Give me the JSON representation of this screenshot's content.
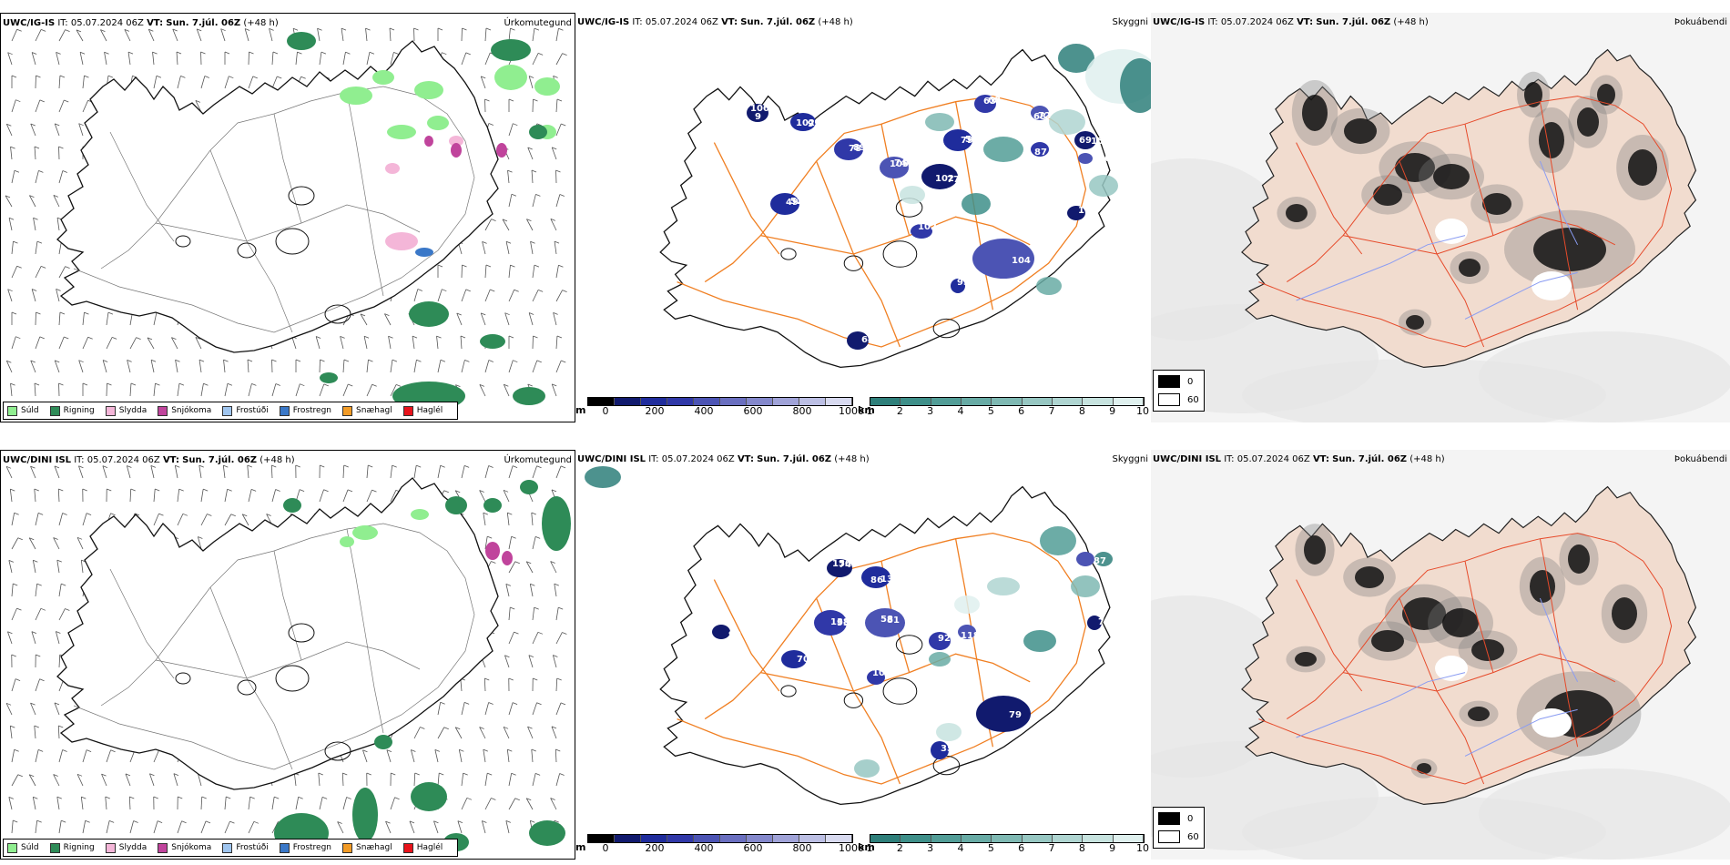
{
  "rows": [
    {
      "model": "UWC/IG-IS",
      "it_label": "IT:",
      "it_value": "05.07.2024 06Z",
      "vt_label": "VT:",
      "vt_value": "Sun. 7.júl. 06Z",
      "lead": "(+48 h)"
    },
    {
      "model": "UWC/DINI ISL",
      "it_label": "IT:",
      "it_value": "05.07.2024 06Z",
      "vt_label": "VT:",
      "vt_value": "Sun. 7.júl. 06Z",
      "lead": "(+48 h)"
    }
  ],
  "panel_names": {
    "precip": "Úrkomutegund",
    "visibility": "Skyggni",
    "fog": "Þokuábendi"
  },
  "precip_legend": [
    {
      "label": "Súld",
      "color": "#90ee90"
    },
    {
      "label": "Rigning",
      "color": "#2e8b57"
    },
    {
      "label": "Slydda",
      "color": "#f4b6d8"
    },
    {
      "label": "Snjókoma",
      "color": "#c0449c"
    },
    {
      "label": "Frostúði",
      "color": "#9fc5ef"
    },
    {
      "label": "Frostregn",
      "color": "#3a78c8"
    },
    {
      "label": "Snæhagl",
      "color": "#f29b26"
    },
    {
      "label": "Haglél",
      "color": "#e8131b"
    }
  ],
  "visibility_m_bar": {
    "unit": "m",
    "ticks": [
      "0",
      "200",
      "400",
      "600",
      "800",
      "1000"
    ],
    "colors": [
      "#000000",
      "#111a6e",
      "#1f2c9c",
      "#3038a8",
      "#4c54b4",
      "#6a6fc0",
      "#8488cc",
      "#a0a3d8",
      "#bcbfe4",
      "#d8daf0"
    ]
  },
  "visibility_km_bar": {
    "unit": "km",
    "ticks": [
      "1",
      "2",
      "3",
      "4",
      "5",
      "6",
      "7",
      "8",
      "9",
      "10"
    ],
    "colors": [
      "#2e7f7a",
      "#3e8f89",
      "#529d97",
      "#68aba5",
      "#7fb9b3",
      "#97c7c2",
      "#afd5d1",
      "#c7e3df",
      "#dff0ee"
    ]
  },
  "fog_legend": [
    {
      "label": "0",
      "color": "#000000"
    },
    {
      "label": "60",
      "color": "#ffffff"
    }
  ],
  "visibility_labels_top": [
    "106",
    "95",
    "78",
    "105",
    "77",
    "79",
    "63",
    "68",
    "152",
    "49",
    "102",
    "104",
    "64",
    "93",
    "87",
    "106",
    "163",
    "9",
    "102",
    "89",
    "74",
    "102",
    "59",
    "68",
    "72",
    "69",
    "52"
  ],
  "visibility_labels_bottom": [
    "150",
    "13",
    "138",
    "58",
    "99",
    "70",
    "92",
    "118",
    "79",
    "35",
    "107",
    "87",
    "72",
    "74",
    "86",
    "93",
    "81"
  ],
  "colors": {
    "coast": "#111111",
    "roads": "#f07f22",
    "fog_land": "#f1dccf",
    "fog_roads": "#e64a2a",
    "rivers": "#8a9cf2",
    "wind_barbs": "#555555"
  }
}
